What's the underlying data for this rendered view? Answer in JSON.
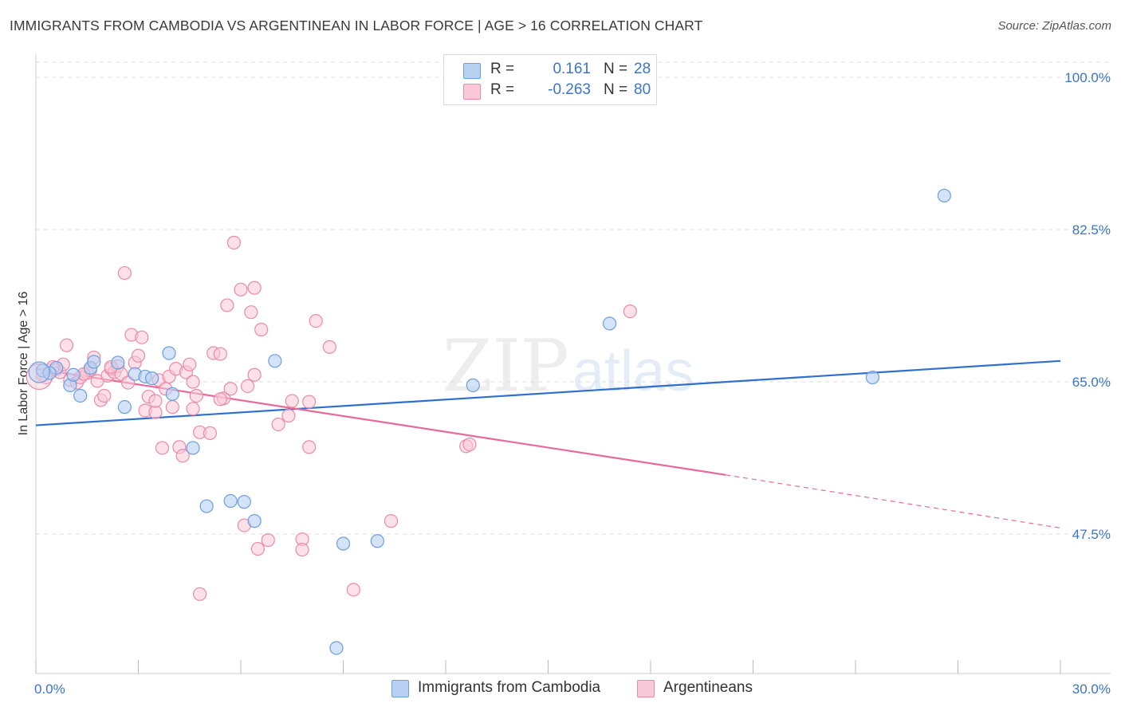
{
  "header": {
    "title": "IMMIGRANTS FROM CAMBODIA VS ARGENTINEAN IN LABOR FORCE | AGE > 16 CORRELATION CHART",
    "source": "Source: ZipAtlas.com"
  },
  "legend_top": [
    {
      "r_label": "R =",
      "r_value": "0.161",
      "n_label": "N =",
      "n_value": "28"
    },
    {
      "r_label": "R =",
      "r_value": "-0.263",
      "n_label": "N =",
      "n_value": "80"
    }
  ],
  "legend_bottom": [
    "Immigrants from Cambodia",
    "Argentineans"
  ],
  "colors": {
    "cambodia_fill": "#b8d1f3",
    "cambodia_stroke": "#6c9ee0",
    "cambodia_line": "#2f6fd0",
    "argentine_fill": "#f9c9d7",
    "argentine_stroke": "#eb8aa9",
    "argentine_line": "#e8699a",
    "tick_text": "#3b74c8",
    "grid": "#dddddd"
  },
  "chart_data": {
    "type": "scatter",
    "title": "IMMIGRANTS FROM CAMBODIA VS ARGENTINEAN IN LABOR FORCE | AGE > 16 CORRELATION CHART",
    "xlabel": "",
    "ylabel": "In Labor Force | Age > 16",
    "xlim": [
      0,
      30
    ],
    "ylim": [
      32,
      102
    ],
    "x_tick_labels": [
      "0.0%",
      "30.0%"
    ],
    "y_ticks": [
      47.5,
      65.0,
      82.5,
      100.0
    ],
    "y_tick_labels": [
      "47.5%",
      "65.0%",
      "82.5%",
      "100.0%"
    ],
    "grid": true,
    "legend_position": "top-center",
    "series": [
      {
        "name": "Immigrants from Cambodia",
        "r": 0.161,
        "n": 28,
        "points": [
          [
            0.2,
            66.3
          ],
          [
            0.6,
            66.6
          ],
          [
            1.0,
            64.6
          ],
          [
            1.3,
            63.4
          ],
          [
            1.6,
            66.6
          ],
          [
            1.7,
            67.3
          ],
          [
            2.4,
            67.2
          ],
          [
            2.6,
            62.1
          ],
          [
            2.9,
            65.9
          ],
          [
            3.2,
            65.6
          ],
          [
            3.4,
            65.4
          ],
          [
            3.9,
            68.3
          ],
          [
            4.0,
            63.6
          ],
          [
            4.6,
            57.4
          ],
          [
            5.0,
            50.7
          ],
          [
            5.7,
            51.3
          ],
          [
            6.1,
            51.2
          ],
          [
            6.4,
            49.0
          ],
          [
            7.0,
            67.4
          ],
          [
            9.0,
            46.4
          ],
          [
            10.0,
            46.7
          ],
          [
            12.8,
            64.6
          ],
          [
            16.8,
            71.7
          ],
          [
            24.5,
            65.5
          ],
          [
            26.6,
            86.4
          ],
          [
            8.8,
            34.4
          ],
          [
            0.4,
            66.0
          ],
          [
            1.1,
            65.8
          ]
        ],
        "trend": {
          "x": [
            0,
            30
          ],
          "y": [
            60.0,
            67.4
          ]
        }
      },
      {
        "name": "Argentineans",
        "r": -0.263,
        "n": 80,
        "points": [
          [
            0.2,
            65.8
          ],
          [
            0.4,
            66.3
          ],
          [
            0.6,
            66.4
          ],
          [
            0.7,
            66.1
          ],
          [
            0.8,
            67.0
          ],
          [
            0.9,
            69.2
          ],
          [
            1.0,
            65.2
          ],
          [
            1.2,
            64.9
          ],
          [
            1.3,
            65.5
          ],
          [
            1.5,
            66.0
          ],
          [
            1.6,
            66.4
          ],
          [
            1.7,
            67.8
          ],
          [
            1.8,
            65.1
          ],
          [
            1.9,
            62.9
          ],
          [
            2.0,
            63.4
          ],
          [
            2.1,
            65.7
          ],
          [
            2.2,
            66.5
          ],
          [
            2.3,
            66.1
          ],
          [
            2.4,
            66.8
          ],
          [
            2.5,
            65.9
          ],
          [
            2.6,
            77.5
          ],
          [
            2.7,
            64.9
          ],
          [
            2.8,
            70.4
          ],
          [
            2.9,
            67.2
          ],
          [
            3.0,
            68.0
          ],
          [
            3.1,
            70.1
          ],
          [
            3.2,
            61.7
          ],
          [
            3.3,
            63.3
          ],
          [
            3.5,
            61.5
          ],
          [
            3.6,
            65.2
          ],
          [
            3.7,
            57.4
          ],
          [
            3.8,
            64.2
          ],
          [
            3.9,
            65.6
          ],
          [
            4.0,
            62.1
          ],
          [
            4.1,
            66.5
          ],
          [
            4.2,
            57.5
          ],
          [
            4.3,
            56.5
          ],
          [
            4.4,
            66.1
          ],
          [
            4.5,
            67.0
          ],
          [
            4.6,
            61.9
          ],
          [
            4.7,
            63.4
          ],
          [
            4.8,
            59.2
          ],
          [
            4.8,
            40.6
          ],
          [
            5.1,
            59.1
          ],
          [
            5.2,
            68.3
          ],
          [
            5.4,
            68.2
          ],
          [
            5.5,
            63.1
          ],
          [
            5.6,
            73.8
          ],
          [
            5.7,
            64.2
          ],
          [
            5.8,
            81.0
          ],
          [
            6.0,
            75.6
          ],
          [
            6.1,
            48.5
          ],
          [
            6.3,
            73.0
          ],
          [
            6.4,
            75.8
          ],
          [
            6.4,
            65.8
          ],
          [
            6.5,
            45.8
          ],
          [
            6.6,
            71.0
          ],
          [
            6.8,
            46.8
          ],
          [
            7.1,
            60.1
          ],
          [
            7.4,
            61.1
          ],
          [
            7.5,
            62.8
          ],
          [
            7.8,
            46.9
          ],
          [
            7.8,
            45.7
          ],
          [
            8.0,
            62.7
          ],
          [
            8.0,
            57.5
          ],
          [
            8.2,
            72.0
          ],
          [
            8.6,
            69.0
          ],
          [
            9.3,
            41.1
          ],
          [
            10.4,
            49.0
          ],
          [
            12.6,
            57.6
          ],
          [
            12.7,
            57.8
          ],
          [
            17.4,
            73.1
          ],
          [
            0.3,
            65.5
          ],
          [
            0.5,
            66.7
          ],
          [
            1.4,
            65.9
          ],
          [
            2.2,
            66.7
          ],
          [
            3.5,
            62.8
          ],
          [
            4.6,
            65.0
          ],
          [
            5.4,
            63.0
          ],
          [
            6.2,
            64.5
          ]
        ],
        "trend": {
          "x": [
            0,
            20.2
          ],
          "y": [
            66.5,
            54.3
          ]
        },
        "trend_dashed": {
          "x": [
            20.2,
            30
          ],
          "y": [
            54.3,
            48.2
          ]
        }
      }
    ]
  }
}
